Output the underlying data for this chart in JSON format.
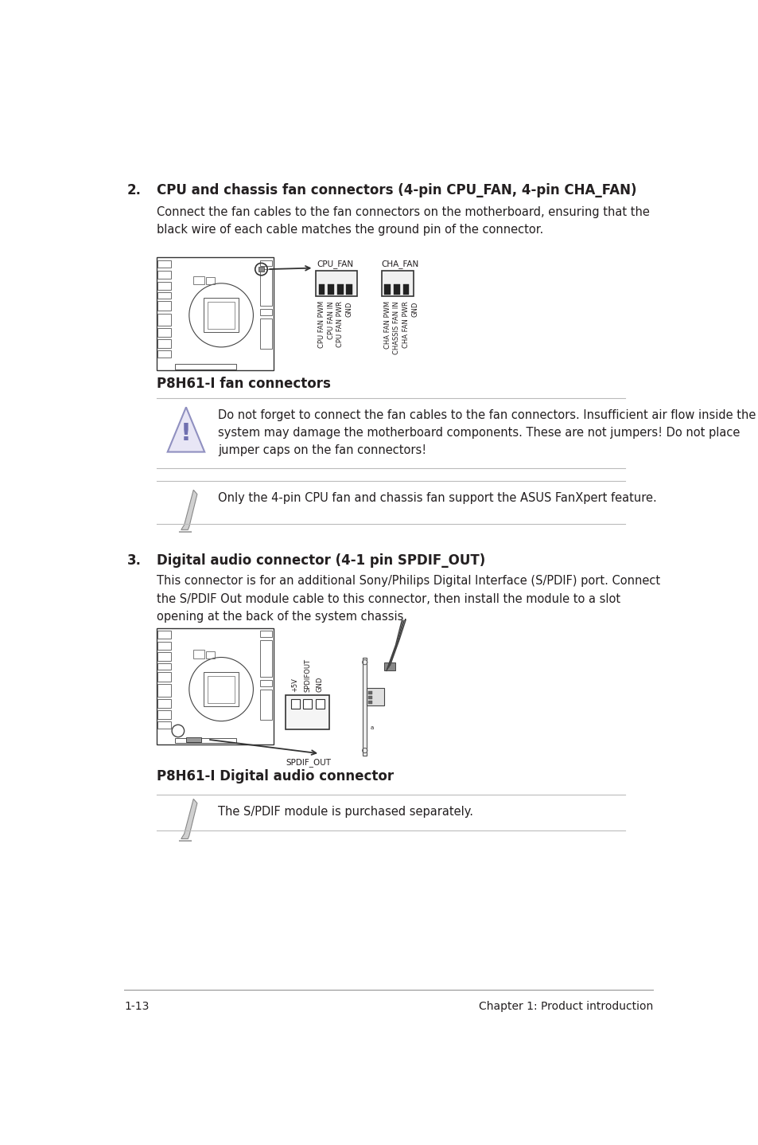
{
  "bg_color": "#ffffff",
  "section2_num": "2.",
  "section2_title": "CPU and chassis fan connectors (4-pin CPU_FAN, 4-pin CHA_FAN)",
  "section2_body": "Connect the fan cables to the fan connectors on the motherboard, ensuring that the\nblack wire of each cable matches the ground pin of the connector.",
  "fan_caption": "P8H61-I fan connectors",
  "warning_text": "Do not forget to connect the fan cables to the fan connectors. Insufficient air flow inside the\nsystem may damage the motherboard components. These are not jumpers! Do not place\njumper caps on the fan connectors!",
  "note1_text": "Only the 4-pin CPU fan and chassis fan support the ASUS FanXpert feature.",
  "section3_num": "3.",
  "section3_title": "Digital audio connector (4-1 pin SPDIF_OUT)",
  "section3_body": "This connector is for an additional Sony/Philips Digital Interface (S/PDIF) port. Connect\nthe S/PDIF Out module cable to this connector, then install the module to a slot\nopening at the back of the system chassis.",
  "audio_caption": "P8H61-I Digital audio connector",
  "note2_text": "The S/PDIF module is purchased separately.",
  "footer_left": "1-13",
  "footer_right": "Chapter 1: Product introduction",
  "text_color": "#231f20",
  "gray_color": "#666666",
  "line_color": "#bbbbbb",
  "dark_line_color": "#888888",
  "body_fontsize": 10.5,
  "heading_fontsize": 12.0,
  "caption_fontsize": 12.0,
  "footer_fontsize": 10.0,
  "small_fontsize": 6.0
}
